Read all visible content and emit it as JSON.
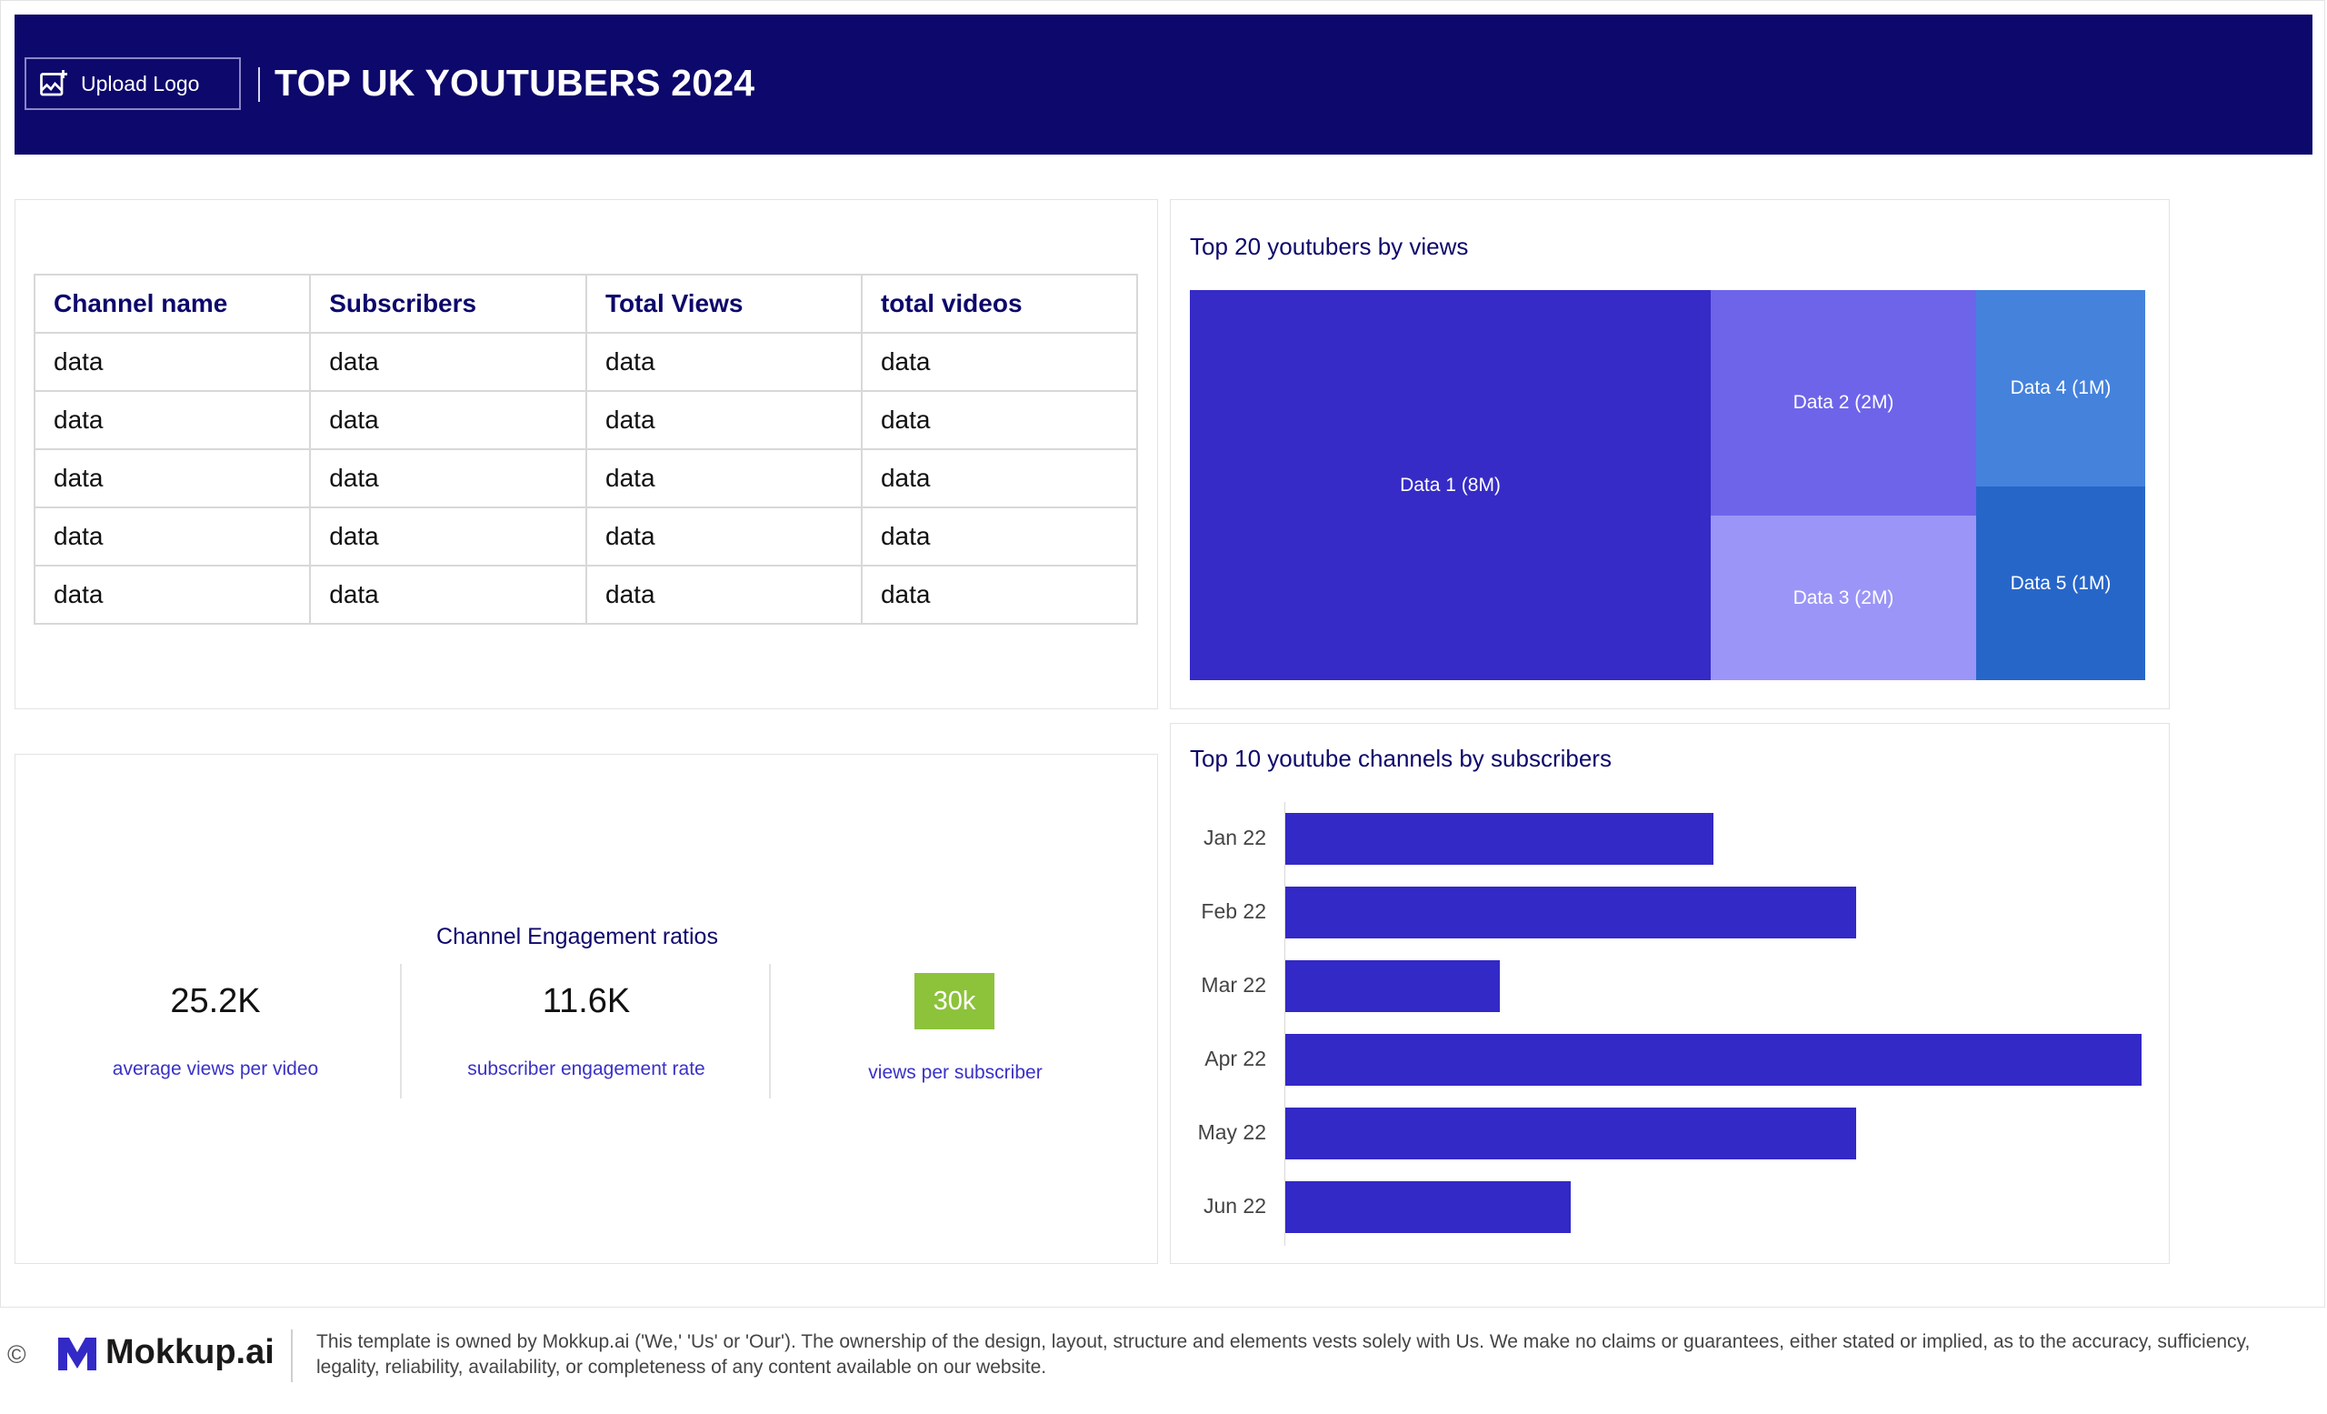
{
  "header": {
    "upload_label": "Upload Logo",
    "title": "TOP UK YOUTUBERS 2024"
  },
  "table": {
    "columns": [
      "Channel name",
      "Subscribers",
      "Total Views",
      "total videos"
    ],
    "rows": [
      [
        "data",
        "data",
        "data",
        "data"
      ],
      [
        "data",
        "data",
        "data",
        "data"
      ],
      [
        "data",
        "data",
        "data",
        "data"
      ],
      [
        "data",
        "data",
        "data",
        "data"
      ],
      [
        "data",
        "data",
        "data",
        "data"
      ]
    ]
  },
  "treemap": {
    "title": "Top 20 youtubers by views",
    "items": [
      {
        "label": "Data 1 (8M)",
        "color": "#362bc6"
      },
      {
        "label": "Data 2 (2M)",
        "color": "#6d64ea"
      },
      {
        "label": "Data 3 (2M)",
        "color": "#9b95f7"
      },
      {
        "label": "Data 4 (1M)",
        "color": "#4482dc"
      },
      {
        "label": "Data 5 (1M)",
        "color": "#2766c9"
      }
    ]
  },
  "kpis": {
    "title": "Channel Engagement ratios",
    "items": [
      {
        "value": "25.2K",
        "label": "average views per video"
      },
      {
        "value": "11.6K",
        "label": "subscriber engagement rate"
      },
      {
        "value": "30k",
        "label": "views per subscriber",
        "color": "#8dc23b"
      }
    ]
  },
  "chart_data": {
    "type": "bar",
    "orientation": "horizontal",
    "title": "Top 10 youtube channels by subscribers",
    "categories": [
      "Jan 22",
      "Feb 22",
      "Mar 22",
      "Apr 22",
      "May 22",
      "Jun 22"
    ],
    "values": [
      30,
      40,
      15,
      60,
      40,
      20
    ],
    "xlim": [
      0,
      60
    ],
    "color": "#3329c6"
  },
  "footer": {
    "copyright_symbol": "©",
    "brand": "Mokkup.ai",
    "disclaimer": "This template is owned by Mokkup.ai ('We,' 'Us' or 'Our'). The ownership of the design, layout, structure and elements vests solely with Us. We make no claims or guarantees, either stated or implied, as to the accuracy, sufficiency, legality, reliability, availability, or completeness of any content available on our website."
  }
}
